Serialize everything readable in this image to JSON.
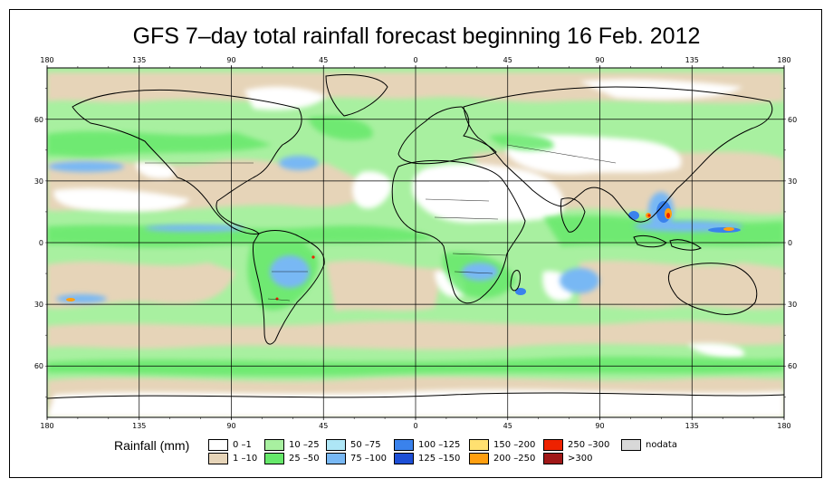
{
  "title": "GFS 7–day total rainfall forecast beginning 16 Feb. 2012",
  "map": {
    "projection": "equirectangular",
    "lon_ticks": [
      "180",
      "135",
      "90",
      "45",
      "0",
      "45",
      "90",
      "135",
      "180"
    ],
    "lat_ticks": [
      "60",
      "30",
      "0",
      "30",
      "60"
    ],
    "lon_values": [
      -180,
      -135,
      -90,
      -45,
      0,
      45,
      90,
      135,
      180
    ],
    "lat_values": [
      60,
      30,
      0,
      -30,
      -60
    ],
    "lat_range": [
      -85,
      85
    ],
    "grid": true
  },
  "legend": {
    "title": "Rainfall (mm)",
    "items": [
      {
        "label": "0 –1",
        "color": "#ffffff"
      },
      {
        "label": "1 –10",
        "color": "#e6d4b8"
      },
      {
        "label": "10 –25",
        "color": "#a8f0a0"
      },
      {
        "label": "25 –50",
        "color": "#66e86a"
      },
      {
        "label": "50 –75",
        "color": "#aee6f6"
      },
      {
        "label": "75 –100",
        "color": "#78b8f4"
      },
      {
        "label": "100 –125",
        "color": "#3a82ec"
      },
      {
        "label": "125 –150",
        "color": "#1d4fd6"
      },
      {
        "label": "150 –200",
        "color": "#ffe070"
      },
      {
        "label": "200 –250",
        "color": "#ff9f10"
      },
      {
        "label": "250 –300",
        "color": "#ee2200"
      },
      {
        "label": ">300",
        "color": "#a01818"
      },
      {
        "label": "nodata",
        "color": "#d8d8d8"
      }
    ]
  }
}
